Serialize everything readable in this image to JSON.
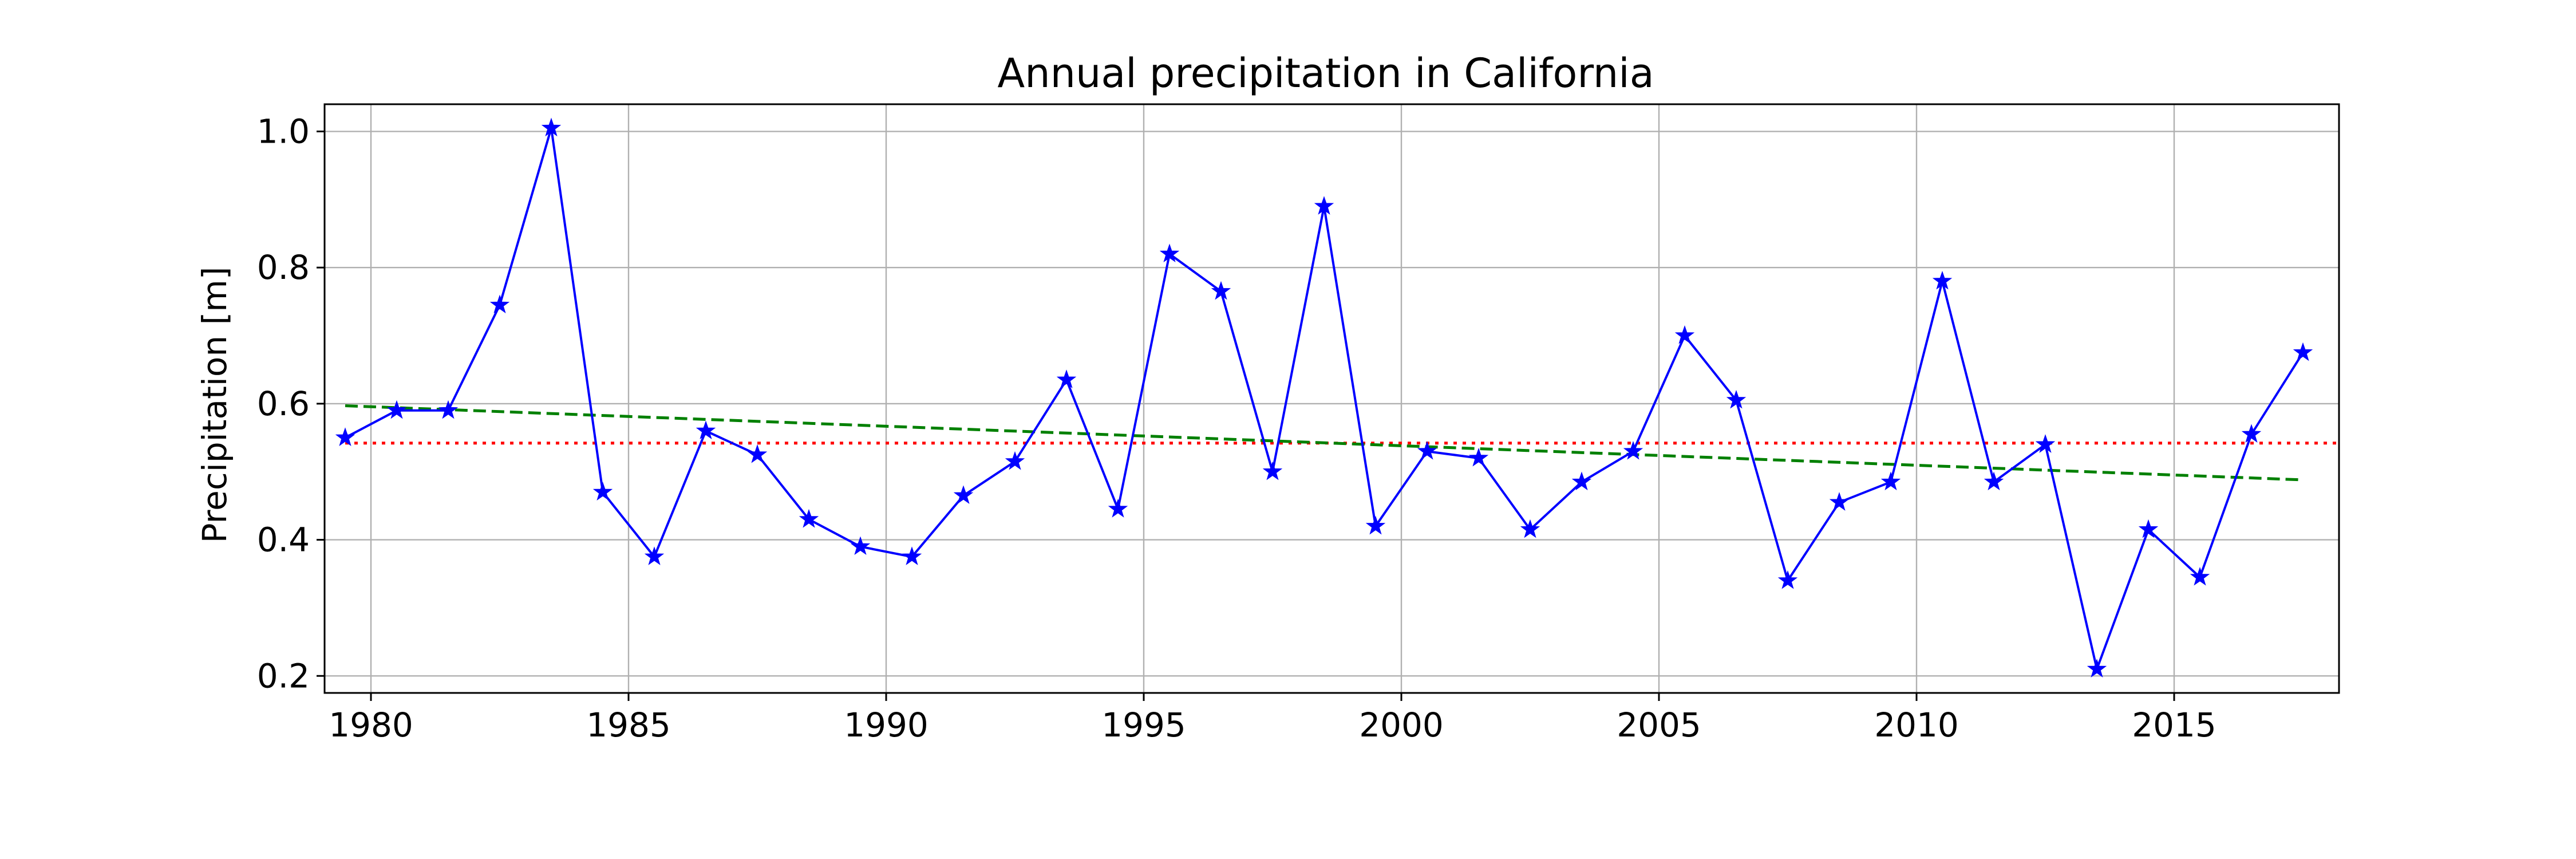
{
  "chart_data": {
    "type": "line",
    "title": "Annual precipitation in California",
    "xlabel": "",
    "ylabel": "Precipitation [m]",
    "xlim": [
      1979.1,
      2018.2
    ],
    "ylim": [
      0.175,
      1.04
    ],
    "grid": true,
    "xticks": [
      1980,
      1985,
      1990,
      1995,
      2000,
      2005,
      2010,
      2015
    ],
    "yticks": [
      0.2,
      0.4,
      0.6,
      0.8,
      1.0
    ],
    "ytick_labels": [
      "0.2",
      "0.4",
      "0.6",
      "0.8",
      "1.0"
    ],
    "series": [
      {
        "name": "Annual precipitation",
        "style": "line-star",
        "color": "#0000ff",
        "x": [
          1979.5,
          1980.5,
          1981.5,
          1982.5,
          1983.5,
          1984.5,
          1985.5,
          1986.5,
          1987.5,
          1988.5,
          1989.5,
          1990.5,
          1991.5,
          1992.5,
          1993.5,
          1994.5,
          1995.5,
          1996.5,
          1997.5,
          1998.5,
          1999.5,
          2000.5,
          2001.5,
          2002.5,
          2003.5,
          2004.5,
          2005.5,
          2006.5,
          2007.5,
          2008.5,
          2009.5,
          2010.5,
          2011.5,
          2012.5,
          2013.5,
          2014.5,
          2015.5,
          2016.5,
          2017.5
        ],
        "values": [
          0.55,
          0.59,
          0.59,
          0.745,
          1.005,
          0.47,
          0.375,
          0.56,
          0.525,
          0.43,
          0.39,
          0.375,
          0.465,
          0.515,
          0.635,
          0.445,
          0.82,
          0.765,
          0.5,
          0.89,
          0.42,
          0.53,
          0.52,
          0.415,
          0.485,
          0.53,
          0.7,
          0.605,
          0.34,
          0.455,
          0.485,
          0.78,
          0.485,
          0.54,
          0.21,
          0.415,
          0.345,
          0.555,
          0.675
        ]
      },
      {
        "name": "Mean",
        "style": "dotted",
        "color": "#ff0000",
        "x": [
          1979.5,
          2018.2
        ],
        "values": [
          0.542,
          0.542
        ]
      },
      {
        "name": "Linear trend",
        "style": "dashed",
        "color": "#008000",
        "x": [
          1979.5,
          2017.5
        ],
        "values": [
          0.597,
          0.488
        ]
      }
    ]
  }
}
